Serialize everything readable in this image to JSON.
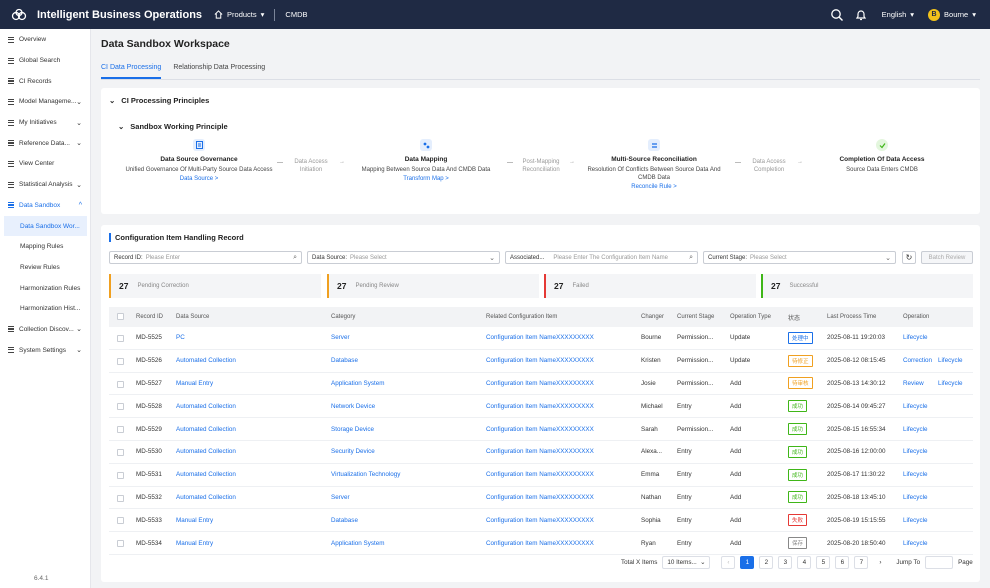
{
  "app": {
    "title": "Intelligent Business Operations",
    "products": "Products",
    "cmdb": "CMDB",
    "language": "English",
    "user": "Bourne"
  },
  "sidebar": {
    "items": [
      {
        "label": "Overview"
      },
      {
        "label": "Global Search"
      },
      {
        "label": "CI Records"
      },
      {
        "label": "Model Manageme..."
      },
      {
        "label": "My Initiatives"
      },
      {
        "label": "Reference Data..."
      },
      {
        "label": "View Center"
      },
      {
        "label": "Statistical Analysis"
      },
      {
        "label": "Data Sandbox"
      }
    ],
    "sub_items": [
      {
        "label": "Data Sandbox Wor..."
      },
      {
        "label": "Mapping Rules"
      },
      {
        "label": "Review Rules"
      },
      {
        "label": "Harmonization Rules"
      },
      {
        "label": "Harmonization Hist..."
      }
    ],
    "bottom_items": [
      {
        "label": "Collection Discov..."
      },
      {
        "label": "System Settings"
      }
    ],
    "version": "6.4.1"
  },
  "page": {
    "title": "Data Sandbox Workspace",
    "tabs": [
      {
        "label": "CI Data Processing"
      },
      {
        "label": "Relationship Data Processing"
      }
    ]
  },
  "principles": {
    "title": "CI Processing Principles",
    "subtitle": "Sandbox Working Principle",
    "steps": [
      {
        "title": "Data Source Governance",
        "desc": "Unified Governance Of Multi-Party Source Data Access",
        "link": "Data Source >"
      },
      {
        "title": "Data Mapping",
        "desc": "Mapping Between Source Data And CMDB Data",
        "link": "Transform Map >"
      },
      {
        "title": "Multi-Source Reconciliation",
        "desc": "Resolution Of Conflicts Between Source Data And CMDB Data",
        "link": "Reconcile Rule >"
      },
      {
        "title": "Completion Of Data Access",
        "desc": "Source Data Enters CMDB",
        "link": ""
      }
    ],
    "connectors": [
      {
        "a": "Data Access",
        "b": "Initiation"
      },
      {
        "a": "Post-Mapping",
        "b": "Reconciliation"
      },
      {
        "a": "Data Access",
        "b": "Completion"
      }
    ]
  },
  "records": {
    "title": "Configuration Item Handling Record",
    "filters": {
      "record_id": {
        "label": "Record ID:",
        "placeholder": "Please Enter"
      },
      "data_source": {
        "label": "Data Source:",
        "placeholder": "Please Select"
      },
      "associated": {
        "label": "Associated...",
        "placeholder": "Please Enter The Configuration Item Name"
      },
      "stage": {
        "label": "Current Stage:",
        "placeholder": "Please Select"
      },
      "batch": "Batch Review"
    },
    "stats": [
      {
        "count": "27",
        "label": "Pending Correction",
        "color": "#f0a020"
      },
      {
        "count": "27",
        "label": "Pending Review",
        "color": "#f0a020"
      },
      {
        "count": "27",
        "label": "Failed",
        "color": "#e53935"
      },
      {
        "count": "27",
        "label": "Successful",
        "color": "#3fb618"
      }
    ],
    "columns": [
      "Record ID",
      "Data Source",
      "Category",
      "Related Configuration Item",
      "Changer",
      "Current Stage",
      "Operation Type",
      "状态",
      "Last Process Time",
      "Operation"
    ],
    "rows": [
      {
        "id": "MD-5525",
        "source": "PC",
        "category": "Server",
        "ci": "Configuration Item NameXXXXXXXXX",
        "changer": "Bourne",
        "stage": "Permission...",
        "op": "Update",
        "status": "处理中",
        "status_color": "#1a6fe8",
        "time": "2025-08-11 19:20:03",
        "actions": [
          "Lifecycle"
        ]
      },
      {
        "id": "MD-5526",
        "source": "Automated Collection",
        "category": "Database",
        "ci": "Configuration Item NameXXXXXXXXX",
        "changer": "Kristen",
        "stage": "Permission...",
        "op": "Update",
        "status": "待修正",
        "status_color": "#f0a020",
        "time": "2025-08-12 08:15:45",
        "actions": [
          "Correction",
          "Lifecycle"
        ]
      },
      {
        "id": "MD-5527",
        "source": "Manual Entry",
        "category": "Application System",
        "ci": "Configuration Item NameXXXXXXXXX",
        "changer": "Josie",
        "stage": "Permission...",
        "op": "Add",
        "status": "待审核",
        "status_color": "#f0a020",
        "time": "2025-08-13 14:30:12",
        "actions": [
          "Review",
          "Lifecycle"
        ]
      },
      {
        "id": "MD-5528",
        "source": "Automated Collection",
        "category": "Network Device",
        "ci": "Configuration Item NameXXXXXXXXX",
        "changer": "Michael",
        "stage": "Entry",
        "op": "Add",
        "status": "成功",
        "status_color": "#3fb618",
        "time": "2025-08-14 09:45:27",
        "actions": [
          "Lifecycle"
        ]
      },
      {
        "id": "MD-5529",
        "source": "Automated Collection",
        "category": "Storage Device",
        "ci": "Configuration Item NameXXXXXXXXX",
        "changer": "Sarah",
        "stage": "Permission...",
        "op": "Add",
        "status": "成功",
        "status_color": "#3fb618",
        "time": "2025-08-15 16:55:34",
        "actions": [
          "Lifecycle"
        ]
      },
      {
        "id": "MD-5530",
        "source": "Automated Collection",
        "category": "Security Device",
        "ci": "Configuration Item NameXXXXXXXXX",
        "changer": "Alexa...",
        "stage": "Entry",
        "op": "Add",
        "status": "成功",
        "status_color": "#3fb618",
        "time": "2025-08-16 12:00:00",
        "actions": [
          "Lifecycle"
        ]
      },
      {
        "id": "MD-5531",
        "source": "Automated Collection",
        "category": "Virtualization Technology",
        "ci": "Configuration Item NameXXXXXXXXX",
        "changer": "Emma",
        "stage": "Entry",
        "op": "Add",
        "status": "成功",
        "status_color": "#3fb618",
        "time": "2025-08-17 11:30:22",
        "actions": [
          "Lifecycle"
        ]
      },
      {
        "id": "MD-5532",
        "source": "Automated Collection",
        "category": "Server",
        "ci": "Configuration Item NameXXXXXXXXX",
        "changer": "Nathan",
        "stage": "Entry",
        "op": "Add",
        "status": "成功",
        "status_color": "#3fb618",
        "time": "2025-08-18 13:45:10",
        "actions": [
          "Lifecycle"
        ]
      },
      {
        "id": "MD-5533",
        "source": "Manual Entry",
        "category": "Database",
        "ci": "Configuration Item NameXXXXXXXXX",
        "changer": "Sophia",
        "stage": "Entry",
        "op": "Add",
        "status": "失败",
        "status_color": "#e53935",
        "time": "2025-08-19 15:15:55",
        "actions": [
          "Lifecycle"
        ]
      },
      {
        "id": "MD-5534",
        "source": "Manual Entry",
        "category": "Application System",
        "ci": "Configuration Item NameXXXXXXXXX",
        "changer": "Ryan",
        "stage": "Entry",
        "op": "Add",
        "status": "保存",
        "status_color": "#888888",
        "time": "2025-08-20 18:50:40",
        "actions": [
          "Lifecycle"
        ]
      }
    ],
    "pagination": {
      "total": "Total X Items",
      "per_page": "10 Items...",
      "pages": [
        "1",
        "2",
        "3",
        "4",
        "5",
        "6",
        "7"
      ],
      "jump": "Jump To",
      "page_suffix": "Page"
    }
  }
}
